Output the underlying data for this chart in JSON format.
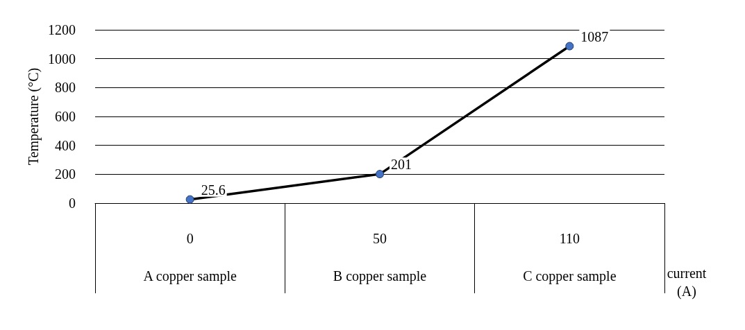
{
  "chart_data": {
    "type": "line",
    "ylabel": "Temperature (°C)",
    "xlabel": "current\n(A)",
    "categories": [
      "0\nA copper sample",
      "50\nB copper sample",
      "110\nC copper sample"
    ],
    "series": [
      {
        "color": "#000000",
        "colors": [
          "#4472c4",
          "#4472c4",
          "#4472c4"
        ],
        "values": [
          25.6,
          201,
          1087
        ]
      }
    ],
    "ylim": [
      0,
      1200
    ],
    "yticks": [
      0,
      200,
      400,
      600,
      800,
      1000,
      1200
    ],
    "grid": "y",
    "marker": "circle",
    "line_style": "solid",
    "data_labels": true
  }
}
